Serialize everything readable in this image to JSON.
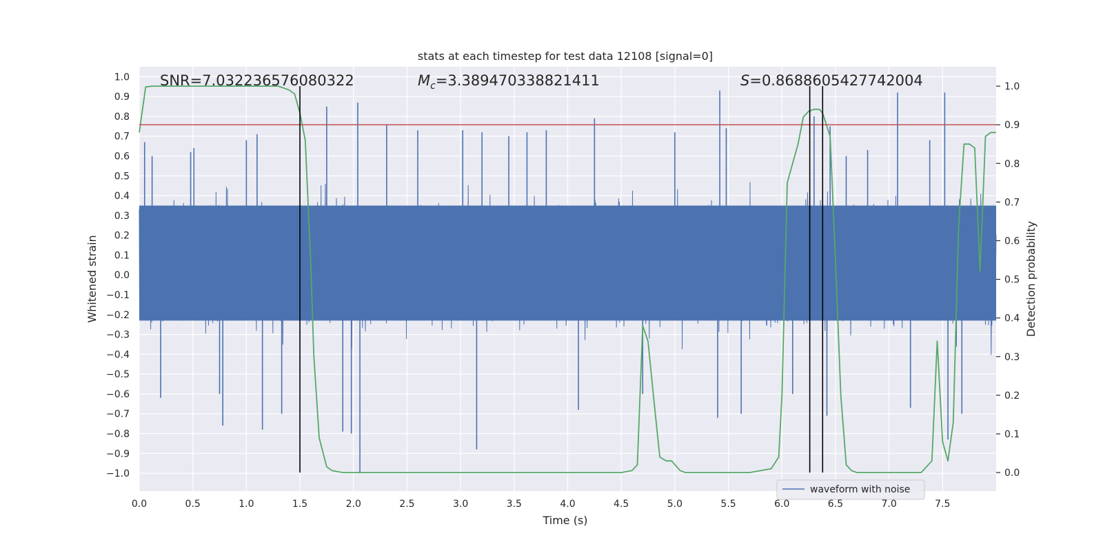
{
  "chart_data": {
    "type": "line",
    "title": "stats at each timestep for test data 12108 [signal=0]",
    "xlabel": "Time (s)",
    "ylabel": "Whitened strain",
    "y2label": "Detection probability",
    "xlim": [
      0.0,
      8.0
    ],
    "ylim": [
      -1.09,
      1.05
    ],
    "y2lim": [
      -0.048,
      1.05
    ],
    "xticks": [
      0.0,
      0.5,
      1.0,
      1.5,
      2.0,
      2.5,
      3.0,
      3.5,
      4.0,
      4.5,
      5.0,
      5.5,
      6.0,
      6.5,
      7.0,
      7.5
    ],
    "xtick_labels": [
      "0.0",
      "0.5",
      "1.0",
      "1.5",
      "2.0",
      "2.5",
      "3.0",
      "3.5",
      "4.0",
      "4.5",
      "5.0",
      "5.5",
      "6.0",
      "6.5",
      "7.0",
      "7.5"
    ],
    "yticks": [
      1.0,
      0.9,
      0.8,
      0.7,
      0.6,
      0.5,
      0.4,
      0.3,
      0.2,
      0.1,
      0.0,
      -0.1,
      -0.2,
      -0.3,
      -0.4,
      -0.5,
      -0.6,
      -0.7,
      -0.8,
      -0.9,
      -1.0
    ],
    "ytick_labels": [
      "1.0",
      "0.9",
      "0.8",
      "0.7",
      "0.6",
      "0.5",
      "0.4",
      "0.3",
      "0.2",
      "0.1",
      "0.0",
      "−0.1",
      "−0.2",
      "−0.3",
      "−0.4",
      "−0.5",
      "−0.6",
      "−0.7",
      "−0.8",
      "−0.9",
      "−1.0"
    ],
    "y2ticks": [
      1.0,
      0.9,
      0.8,
      0.7,
      0.6,
      0.5,
      0.4,
      0.3,
      0.2,
      0.1,
      0.0
    ],
    "y2tick_labels": [
      "1.0",
      "0.9",
      "0.8",
      "0.7",
      "0.6",
      "0.5",
      "0.4",
      "0.3",
      "0.2",
      "0.1",
      "0.0"
    ],
    "grid": true,
    "legend": {
      "position": "bottom-right",
      "entries": [
        "waveform with noise"
      ]
    },
    "annotations": {
      "snr": "SNR=7.032236576080322",
      "mc_symbol": "M",
      "mc_sub": "c",
      "mc_value": "=3.389470338821411",
      "s_symbol": "S",
      "s_value": "=0.8688605427742004"
    },
    "series": [
      {
        "name": "waveform with noise",
        "axis": "left",
        "color": "#4c72b0",
        "style": "dense noise",
        "core_range": [
          -0.23,
          0.35
        ],
        "typical_range": [
          -0.42,
          0.55
        ],
        "spikes": [
          {
            "x": 0.05,
            "y": 0.67
          },
          {
            "x": 0.12,
            "y": 0.6
          },
          {
            "x": 0.2,
            "y": -0.62
          },
          {
            "x": 0.48,
            "y": 0.62
          },
          {
            "x": 0.51,
            "y": 0.64
          },
          {
            "x": 0.75,
            "y": -0.6
          },
          {
            "x": 0.78,
            "y": -0.76
          },
          {
            "x": 1.0,
            "y": 0.68
          },
          {
            "x": 1.1,
            "y": 0.71
          },
          {
            "x": 1.15,
            "y": -0.78
          },
          {
            "x": 1.33,
            "y": -0.7
          },
          {
            "x": 1.75,
            "y": 0.85
          },
          {
            "x": 1.9,
            "y": -0.79
          },
          {
            "x": 1.98,
            "y": -0.8
          },
          {
            "x": 2.04,
            "y": 0.87
          },
          {
            "x": 2.06,
            "y": -1.0
          },
          {
            "x": 2.31,
            "y": 0.76
          },
          {
            "x": 2.6,
            "y": 0.73
          },
          {
            "x": 3.02,
            "y": 0.73
          },
          {
            "x": 3.15,
            "y": -0.88
          },
          {
            "x": 3.2,
            "y": 0.72
          },
          {
            "x": 3.45,
            "y": 0.7
          },
          {
            "x": 3.62,
            "y": 0.72
          },
          {
            "x": 3.8,
            "y": 0.73
          },
          {
            "x": 4.1,
            "y": -0.68
          },
          {
            "x": 4.25,
            "y": 0.79
          },
          {
            "x": 4.7,
            "y": -0.6
          },
          {
            "x": 5.0,
            "y": 0.72
          },
          {
            "x": 5.4,
            "y": -0.72
          },
          {
            "x": 5.42,
            "y": 0.93
          },
          {
            "x": 5.48,
            "y": 0.74
          },
          {
            "x": 5.62,
            "y": -0.7
          },
          {
            "x": 6.1,
            "y": -0.6
          },
          {
            "x": 6.3,
            "y": 0.8
          },
          {
            "x": 6.42,
            "y": -0.71
          },
          {
            "x": 6.45,
            "y": 0.75
          },
          {
            "x": 6.6,
            "y": 0.6
          },
          {
            "x": 6.8,
            "y": 0.63
          },
          {
            "x": 7.08,
            "y": 0.92
          },
          {
            "x": 7.2,
            "y": -0.67
          },
          {
            "x": 7.38,
            "y": 0.68
          },
          {
            "x": 7.52,
            "y": 0.92
          },
          {
            "x": 7.55,
            "y": -0.83
          },
          {
            "x": 7.68,
            "y": -0.7
          }
        ]
      },
      {
        "name": "detection probability",
        "axis": "right",
        "color": "#55a868",
        "x": [
          0.0,
          0.06,
          0.12,
          0.3,
          0.6,
          0.9,
          1.2,
          1.3,
          1.4,
          1.45,
          1.5,
          1.55,
          1.6,
          1.63,
          1.68,
          1.75,
          1.8,
          1.9,
          2.0,
          2.5,
          3.0,
          3.5,
          4.0,
          4.5,
          4.6,
          4.65,
          4.7,
          4.75,
          4.8,
          4.86,
          4.92,
          4.97,
          5.05,
          5.1,
          5.5,
          5.7,
          5.9,
          5.97,
          6.0,
          6.05,
          6.1,
          6.15,
          6.2,
          6.25,
          6.3,
          6.35,
          6.38,
          6.45,
          6.5,
          6.55,
          6.6,
          6.65,
          6.7,
          6.8,
          7.0,
          7.2,
          7.3,
          7.4,
          7.45,
          7.5,
          7.55,
          7.6,
          7.65,
          7.7,
          7.75,
          7.8,
          7.85,
          7.9,
          7.95,
          8.0
        ],
        "values": [
          0.88,
          0.998,
          1.0,
          1.0,
          1.0,
          1.0,
          1.0,
          1.0,
          0.99,
          0.98,
          0.93,
          0.86,
          0.55,
          0.3,
          0.09,
          0.015,
          0.005,
          0.0,
          0.0,
          0.0,
          0.0,
          0.0,
          0.0,
          0.0,
          0.005,
          0.02,
          0.38,
          0.34,
          0.2,
          0.04,
          0.03,
          0.03,
          0.005,
          0.0,
          0.0,
          0.0,
          0.01,
          0.04,
          0.2,
          0.75,
          0.8,
          0.85,
          0.92,
          0.935,
          0.94,
          0.94,
          0.93,
          0.87,
          0.55,
          0.2,
          0.02,
          0.005,
          0.0,
          0.0,
          0.0,
          0.0,
          0.0,
          0.03,
          0.34,
          0.08,
          0.03,
          0.13,
          0.64,
          0.85,
          0.85,
          0.84,
          0.52,
          0.87,
          0.88,
          0.88
        ]
      }
    ],
    "reference_lines": [
      {
        "type": "horizontal",
        "axis": "right",
        "value": 0.9,
        "color": "#c44e52"
      },
      {
        "type": "vertical",
        "x": 1.5,
        "color": "#000000"
      },
      {
        "type": "vertical",
        "x": 6.26,
        "color": "#000000"
      },
      {
        "type": "vertical",
        "x": 6.38,
        "color": "#000000"
      }
    ]
  }
}
